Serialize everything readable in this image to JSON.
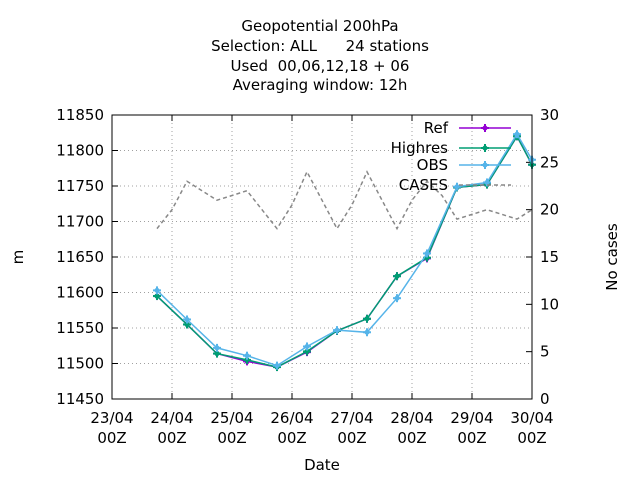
{
  "title_lines": [
    "Geopotential 200hPa",
    "Selection: ALL      24 stations",
    "Used  00,06,12,18 + 06",
    "Averaging window: 12h"
  ],
  "chart_data": {
    "type": "line",
    "xlabel": "Date",
    "ylabel": "m",
    "y2label": "No cases",
    "ylim": [
      11450,
      11850
    ],
    "y2lim": [
      0,
      30
    ],
    "yticks": [
      11450,
      11500,
      11550,
      11600,
      11650,
      11700,
      11750,
      11800,
      11850
    ],
    "y2ticks": [
      0,
      5,
      10,
      15,
      20,
      25,
      30
    ],
    "xlim": [
      0,
      7
    ],
    "xticks": [
      {
        "pos": 0,
        "line1": "23/04",
        "line2": "00Z"
      },
      {
        "pos": 1,
        "line1": "24/04",
        "line2": "00Z"
      },
      {
        "pos": 2,
        "line1": "25/04",
        "line2": "00Z"
      },
      {
        "pos": 3,
        "line1": "26/04",
        "line2": "00Z"
      },
      {
        "pos": 4,
        "line1": "27/04",
        "line2": "00Z"
      },
      {
        "pos": 5,
        "line1": "28/04",
        "line2": "00Z"
      },
      {
        "pos": 6,
        "line1": "29/04",
        "line2": "00Z"
      },
      {
        "pos": 7,
        "line1": "30/04",
        "line2": "00Z"
      }
    ],
    "grid": true,
    "legend_position": "top-right",
    "series": [
      {
        "name": "Ref",
        "color": "#9400d3",
        "marker": "plus",
        "axis": "y1",
        "x": [
          0.75,
          1.25,
          1.75,
          2.25,
          2.75,
          3.25,
          3.75,
          4.25,
          4.75,
          5.25,
          5.75,
          6.25,
          6.75,
          7.0
        ],
        "y": [
          11595,
          11555,
          11514,
          11503,
          11495,
          11516,
          11546,
          11563,
          11623,
          11648,
          11748,
          11752,
          11820,
          11780
        ]
      },
      {
        "name": "Highres",
        "color": "#009e73",
        "marker": "plus",
        "axis": "y1",
        "x": [
          0.75,
          1.25,
          1.75,
          2.25,
          2.75,
          3.25,
          3.75,
          4.25,
          4.75,
          5.25,
          5.75,
          6.25,
          6.75,
          7.0
        ],
        "y": [
          11595,
          11555,
          11514,
          11505,
          11495,
          11517,
          11546,
          11563,
          11623,
          11649,
          11748,
          11752,
          11820,
          11780
        ]
      },
      {
        "name": "OBS",
        "color": "#56b4e9",
        "marker": "plus",
        "axis": "y1",
        "x": [
          0.75,
          1.25,
          1.75,
          2.25,
          2.75,
          3.25,
          3.75,
          4.25,
          4.75,
          5.25,
          5.75,
          6.25,
          6.75,
          7.0
        ],
        "y": [
          11603,
          11562,
          11522,
          11511,
          11497,
          11524,
          11547,
          11544,
          11592,
          11655,
          11749,
          11755,
          11823,
          11787
        ]
      },
      {
        "name": "CASES",
        "color": "#888888",
        "dashed": true,
        "axis": "y2",
        "x": [
          0.75,
          1.0,
          1.25,
          1.5,
          1.75,
          2.0,
          2.25,
          2.5,
          2.75,
          3.0,
          3.25,
          3.5,
          3.75,
          4.0,
          4.25,
          4.5,
          4.75,
          5.0,
          5.25,
          5.5,
          5.75,
          6.0,
          6.25,
          6.5,
          6.75,
          7.0
        ],
        "y": [
          18,
          20,
          23,
          22,
          21,
          21.5,
          22,
          20,
          18,
          20.5,
          24,
          21,
          18,
          20.5,
          24,
          21,
          18,
          21,
          23,
          21.5,
          19,
          19.5,
          20,
          19.5,
          19,
          20
        ]
      }
    ]
  }
}
